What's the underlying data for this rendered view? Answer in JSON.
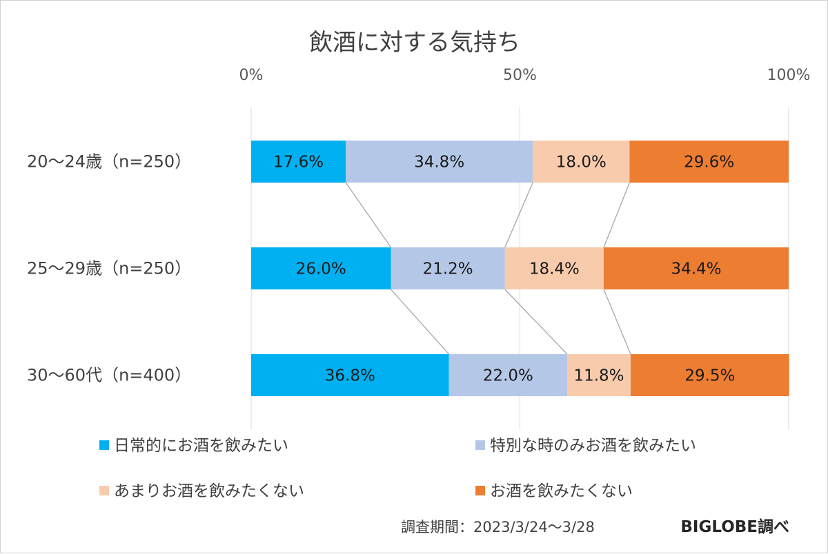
{
  "chart_data": {
    "type": "bar",
    "orientation": "horizontal",
    "stacked": true,
    "normalized": true,
    "title": "飲酒に対する気持ち",
    "x_ticks": [
      "0%",
      "50%",
      "100%"
    ],
    "xlim": [
      0,
      100
    ],
    "categories": [
      "20～24歳（n=250）",
      "25～29歳（n=250）",
      "30～60代（n=400）"
    ],
    "series": [
      {
        "name": "日常的にお酒を飲みたい",
        "color": "#00b0f0",
        "values": [
          17.6,
          26.0,
          36.8
        ],
        "labels": [
          "17.6%",
          "26.0%",
          "36.8%"
        ]
      },
      {
        "name": "特別な時のみお酒を飲みたい",
        "color": "#b4c7e7",
        "values": [
          34.8,
          21.2,
          22.0
        ],
        "labels": [
          "34.8%",
          "21.2%",
          "22.0%"
        ]
      },
      {
        "name": "あまりお酒を飲みたくない",
        "color": "#f8cbad",
        "values": [
          18.0,
          18.4,
          11.8
        ],
        "labels": [
          "18.0%",
          "18.4%",
          "11.8%"
        ]
      },
      {
        "name": "お酒を飲みたくない",
        "color": "#ed7d31",
        "values": [
          29.6,
          34.4,
          29.5
        ],
        "labels": [
          "29.6%",
          "34.4%",
          "29.5%"
        ]
      }
    ],
    "series_lines": true,
    "grid": true,
    "legend_position": "bottom"
  },
  "footer": {
    "period": "調査期間：2023/3/24～3/28",
    "source": "BIGLOBE調べ"
  }
}
